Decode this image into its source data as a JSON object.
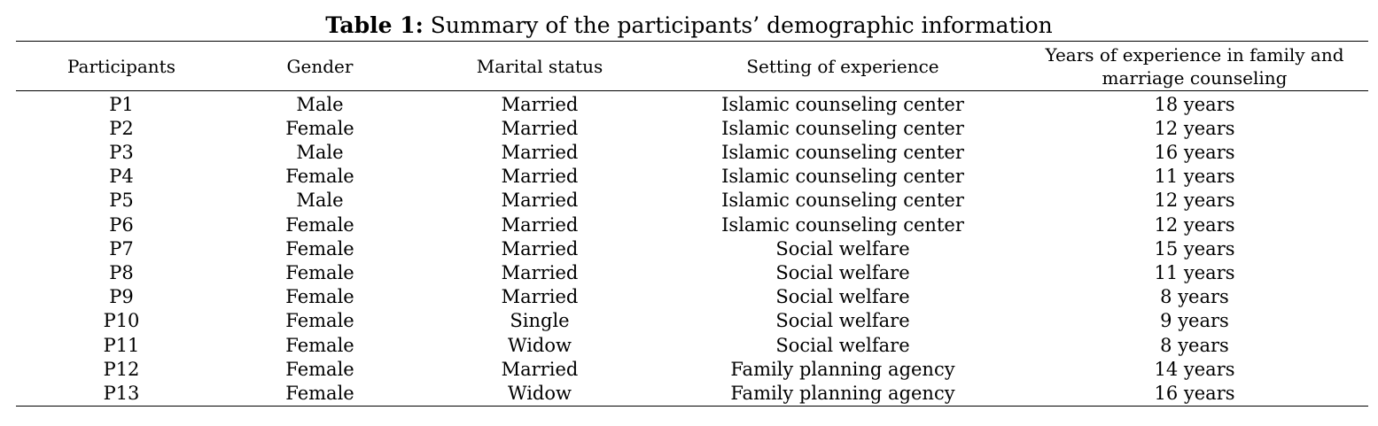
{
  "caption": {
    "label": "Table 1:",
    "text": " Summary of the participants’ demographic information"
  },
  "table": {
    "headers": [
      "Participants",
      "Gender",
      "Marital status",
      "Setting of experience",
      "Years of experience in family and marriage counseling"
    ],
    "rows": [
      [
        "P1",
        "Male",
        "Married",
        "Islamic counseling center",
        "18 years"
      ],
      [
        "P2",
        "Female",
        "Married",
        "Islamic counseling center",
        "12 years"
      ],
      [
        "P3",
        "Male",
        "Married",
        "Islamic counseling center",
        "16 years"
      ],
      [
        "P4",
        "Female",
        "Married",
        "Islamic counseling center",
        "11 years"
      ],
      [
        "P5",
        "Male",
        "Married",
        "Islamic counseling center",
        "12 years"
      ],
      [
        "P6",
        "Female",
        "Married",
        "Islamic counseling center",
        "12 years"
      ],
      [
        "P7",
        "Female",
        "Married",
        "Social welfare",
        "15 years"
      ],
      [
        "P8",
        "Female",
        "Married",
        "Social welfare",
        "11 years"
      ],
      [
        "P9",
        "Female",
        "Married",
        "Social welfare",
        "8 years"
      ],
      [
        "P10",
        "Female",
        "Single",
        "Social welfare",
        "9 years"
      ],
      [
        "P11",
        "Female",
        "Widow",
        "Social welfare",
        "8 years"
      ],
      [
        "P12",
        "Female",
        "Married",
        "Family planning agency",
        "14 years"
      ],
      [
        "P13",
        "Female",
        "Widow",
        "Family planning agency",
        "16 years"
      ]
    ]
  }
}
